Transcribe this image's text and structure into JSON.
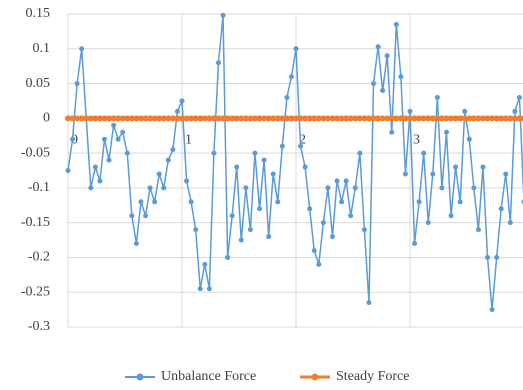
{
  "chart_data": {
    "type": "line",
    "x": [
      0,
      0.04,
      0.08,
      0.12,
      0.16,
      0.2,
      0.24,
      0.28,
      0.32,
      0.36,
      0.4,
      0.44,
      0.48,
      0.52,
      0.56,
      0.6,
      0.64,
      0.68,
      0.72,
      0.76,
      0.8,
      0.84,
      0.88,
      0.92,
      0.96,
      1,
      1.04,
      1.08,
      1.12,
      1.16,
      1.2,
      1.24,
      1.28,
      1.32,
      1.36,
      1.4,
      1.44,
      1.48,
      1.52,
      1.56,
      1.6,
      1.64,
      1.68,
      1.72,
      1.76,
      1.8,
      1.84,
      1.88,
      1.92,
      1.96,
      2,
      2.04,
      2.08,
      2.12,
      2.16,
      2.2,
      2.24,
      2.28,
      2.32,
      2.36,
      2.4,
      2.44,
      2.48,
      2.52,
      2.56,
      2.6,
      2.64,
      2.68,
      2.72,
      2.76,
      2.8,
      2.84,
      2.88,
      2.92,
      2.96,
      3,
      3.04,
      3.08,
      3.12,
      3.16,
      3.2,
      3.24,
      3.28,
      3.32,
      3.36,
      3.4,
      3.44,
      3.48,
      3.52,
      3.56,
      3.6,
      3.64,
      3.68,
      3.72,
      3.76,
      3.8,
      3.84,
      3.88,
      3.92,
      3.96,
      4
    ],
    "series": [
      {
        "name": "Unbalance Force",
        "color": "#5b9bd5",
        "values": [
          -0.075,
          -0.03,
          0.05,
          0.1,
          0.0,
          -0.1,
          -0.07,
          -0.09,
          -0.03,
          -0.06,
          -0.01,
          -0.03,
          -0.02,
          -0.05,
          -0.14,
          -0.18,
          -0.12,
          -0.14,
          -0.1,
          -0.12,
          -0.08,
          -0.1,
          -0.06,
          -0.045,
          0.01,
          0.025,
          -0.09,
          -0.12,
          -0.16,
          -0.245,
          -0.21,
          -0.245,
          -0.05,
          0.08,
          0.148,
          -0.2,
          -0.14,
          -0.07,
          -0.175,
          -0.1,
          -0.16,
          -0.05,
          -0.13,
          -0.06,
          -0.17,
          -0.08,
          -0.12,
          -0.04,
          0.03,
          0.06,
          0.1,
          -0.04,
          -0.07,
          -0.13,
          -0.19,
          -0.21,
          -0.15,
          -0.1,
          -0.17,
          -0.09,
          -0.12,
          -0.09,
          -0.14,
          -0.1,
          -0.05,
          -0.16,
          -0.265,
          0.05,
          0.103,
          0.04,
          0.09,
          -0.02,
          0.135,
          0.06,
          -0.08,
          0.01,
          -0.18,
          -0.12,
          -0.05,
          -0.15,
          -0.08,
          0.03,
          -0.1,
          -0.02,
          -0.14,
          -0.07,
          -0.12,
          0.01,
          -0.03,
          -0.1,
          -0.16,
          -0.07,
          -0.2,
          -0.275,
          -0.2,
          -0.13,
          -0.08,
          -0.15,
          0.01,
          0.03,
          -0.12
        ]
      },
      {
        "name": "Steady Force",
        "color": "#ed7d31",
        "values": [
          0,
          0,
          0,
          0,
          0,
          0,
          0,
          0,
          0,
          0,
          0,
          0,
          0,
          0,
          0,
          0,
          0,
          0,
          0,
          0,
          0,
          0,
          0,
          0,
          0,
          0,
          0,
          0,
          0,
          0,
          0,
          0,
          0,
          0,
          0,
          0,
          0,
          0,
          0,
          0,
          0,
          0,
          0,
          0,
          0,
          0,
          0,
          0,
          0,
          0,
          0,
          0,
          0,
          0,
          0,
          0,
          0,
          0,
          0,
          0,
          0,
          0,
          0,
          0,
          0,
          0,
          0,
          0,
          0,
          0,
          0,
          0,
          0,
          0,
          0,
          0,
          0,
          0,
          0,
          0,
          0,
          0,
          0,
          0,
          0,
          0,
          0,
          0,
          0,
          0,
          0,
          0,
          0,
          0,
          0,
          0,
          0,
          0,
          0,
          0,
          0
        ]
      }
    ],
    "xlim": [
      0,
      4
    ],
    "xticks": [
      0,
      1,
      2,
      3
    ],
    "ylim": [
      -0.3,
      0.15
    ],
    "yticks": [
      0.15,
      0.1,
      0.05,
      0,
      -0.05,
      -0.1,
      -0.15,
      -0.2,
      -0.25,
      -0.3
    ],
    "grid": true,
    "legend": "bottom"
  }
}
